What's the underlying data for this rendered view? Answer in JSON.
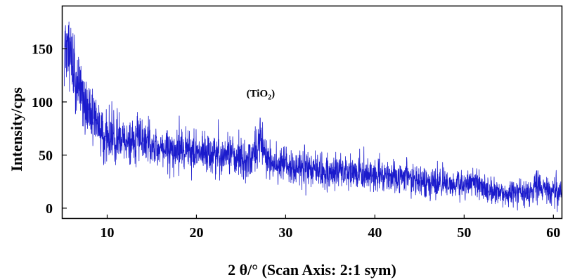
{
  "chart_data": {
    "type": "line",
    "title": "",
    "xlabel": "2 θ/° (Scan Axis: 2:1 sym)",
    "ylabel": "Intensity/cps",
    "xlim": [
      5,
      61
    ],
    "ylim": [
      -10,
      190
    ],
    "x_ticks": [
      10,
      20,
      30,
      40,
      50,
      60
    ],
    "y_ticks": [
      0,
      50,
      100,
      150
    ],
    "grid": false,
    "legend": "none",
    "series_color": "#1a1acc",
    "annotations": [
      {
        "text": "(TiO",
        "sub": "2",
        "close": ")",
        "x": 27.2,
        "y": 105
      }
    ],
    "series": [
      {
        "x": [
          5.2,
          5.5,
          6,
          6.5,
          7,
          7.5,
          8,
          8.5,
          9,
          9.5,
          10,
          10.5,
          11,
          11.5,
          12,
          13,
          14,
          14.5,
          15,
          16,
          17,
          18,
          19,
          20,
          21,
          22,
          23,
          24,
          25,
          25.5,
          26,
          26.5,
          26.9,
          27.2,
          27.5,
          28,
          29,
          30,
          31,
          32,
          33,
          34,
          35,
          36,
          37,
          38,
          39,
          40,
          41,
          42,
          43,
          44,
          45,
          46,
          47,
          48,
          49,
          50,
          50.5,
          51,
          51.2,
          51.5,
          52,
          53,
          54,
          55,
          56,
          57,
          57.5,
          58,
          58.5,
          59,
          60,
          61
        ],
        "y": [
          160,
          150,
          137,
          125,
          112,
          100,
          90,
          82,
          76,
          71,
          67,
          65,
          63,
          62,
          62,
          62,
          61,
          63,
          59,
          57,
          56,
          55,
          54,
          53,
          51,
          50,
          49,
          48,
          46,
          47,
          48,
          52,
          60,
          67,
          58,
          46,
          40,
          38,
          37,
          38,
          37,
          36,
          35,
          35,
          34,
          33,
          32,
          31,
          30,
          29,
          28,
          27,
          26,
          25,
          24,
          23,
          22,
          22,
          24,
          30,
          27,
          22,
          18,
          16,
          15,
          14,
          14,
          14,
          17,
          22,
          20,
          17,
          14,
          13
        ]
      }
    ]
  }
}
